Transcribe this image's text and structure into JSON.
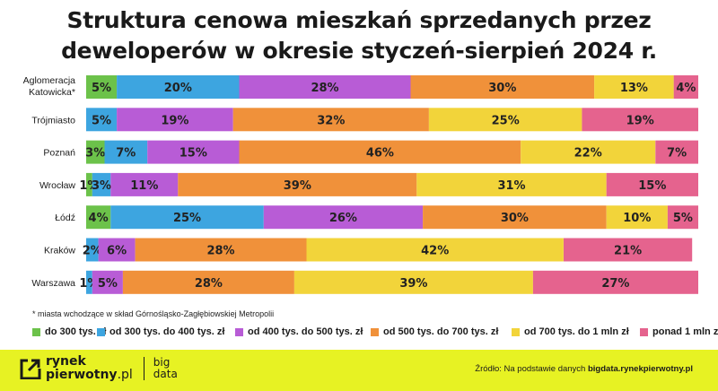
{
  "title_line1": "Struktura cenowa mieszkań sprzedanych przez",
  "title_line2": "deweloperów w okresie styczeń-sierpień 2024 r.",
  "footnote": "* miasta wchodzące w skład Górnośląsko-Zagłębiowskiej Metropolii",
  "footer": {
    "logo_line1": "rynek",
    "logo_line2_bold": "pierwotny",
    "logo_line2_suffix": ".pl",
    "logo_big": "big",
    "logo_data": "data",
    "source_prefix": "Źródło: Na podstawie danych ",
    "source_link": "bigdata.rynekpierwotny.pl"
  },
  "chart_data": {
    "type": "bar",
    "orientation": "horizontal",
    "stacked": true,
    "xlim": [
      0,
      100
    ],
    "unit": "%",
    "grid": false,
    "legend_position": "bottom",
    "categories": [
      "Aglomeracja Katowicka*",
      "Trójmiasto",
      "Poznań",
      "Wrocław",
      "Łódź",
      "Kraków",
      "Warszawa"
    ],
    "series": [
      {
        "name": "do 300 tys. zł",
        "color": "#6cc24a",
        "values": [
          5,
          0,
          3,
          1,
          4,
          0,
          0
        ]
      },
      {
        "name": "od 300 tys. do 400 tys. zł",
        "color": "#3da5e0",
        "values": [
          20,
          5,
          7,
          3,
          25,
          2,
          1
        ]
      },
      {
        "name": "od 400 tys. do 500 tys. zł",
        "color": "#b85cd6",
        "values": [
          28,
          19,
          15,
          11,
          26,
          6,
          5
        ]
      },
      {
        "name": "od 500 tys. do 700 tys. zł",
        "color": "#f0913a",
        "values": [
          30,
          32,
          46,
          39,
          30,
          28,
          28
        ]
      },
      {
        "name": "od 700 tys. do 1 mln zł",
        "color": "#f2d43a",
        "values": [
          13,
          25,
          22,
          31,
          10,
          42,
          39
        ]
      },
      {
        "name": "ponad 1 mln zł",
        "color": "#e5638e",
        "values": [
          4,
          19,
          7,
          15,
          5,
          21,
          27
        ]
      }
    ]
  }
}
